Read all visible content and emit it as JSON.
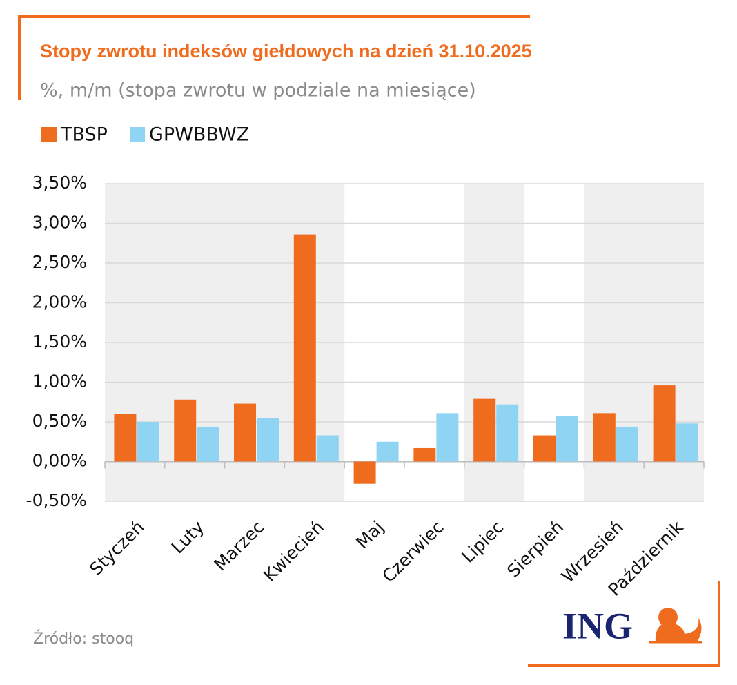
{
  "chart_data": {
    "type": "bar",
    "title": "Stopy zwrotu indeksów giełdowych na dzień 31.10.2025",
    "subtitle": "%, m/m (stopa zwrotu w podziale na miesiące)",
    "categories": [
      "Styczeń",
      "Luty",
      "Marzec",
      "Kwiecień",
      "Maj",
      "Czerwiec",
      "Lipiec",
      "Sierpień",
      "Wrzesień",
      "Październik"
    ],
    "series": [
      {
        "name": "TBSP",
        "color": "#ef6c1e",
        "values": [
          0.6,
          0.78,
          0.73,
          2.86,
          -0.28,
          0.17,
          0.79,
          0.33,
          0.61,
          0.96
        ]
      },
      {
        "name": "GPWBBWZ",
        "color": "#8fd4f2",
        "values": [
          0.5,
          0.44,
          0.55,
          0.33,
          0.25,
          0.61,
          0.72,
          0.57,
          0.44,
          0.48
        ]
      }
    ],
    "ylim": [
      -0.5,
      3.5
    ],
    "yticks": [
      {
        "value": -0.5,
        "label": "-0,50%"
      },
      {
        "value": 0,
        "label": "0,00%"
      },
      {
        "value": 0.5,
        "label": "0,50%"
      },
      {
        "value": 1,
        "label": "1,00%"
      },
      {
        "value": 1.5,
        "label": "1,50%"
      },
      {
        "value": 2,
        "label": "2,00%"
      },
      {
        "value": 2.5,
        "label": "2,50%"
      },
      {
        "value": 3,
        "label": "3,00%"
      },
      {
        "value": 3.5,
        "label": "3,50%"
      }
    ],
    "grid": true,
    "shaded_categories": [
      0,
      1,
      2,
      3,
      6,
      8,
      9
    ],
    "source": "Źródło: stooq",
    "logo": "ING"
  }
}
